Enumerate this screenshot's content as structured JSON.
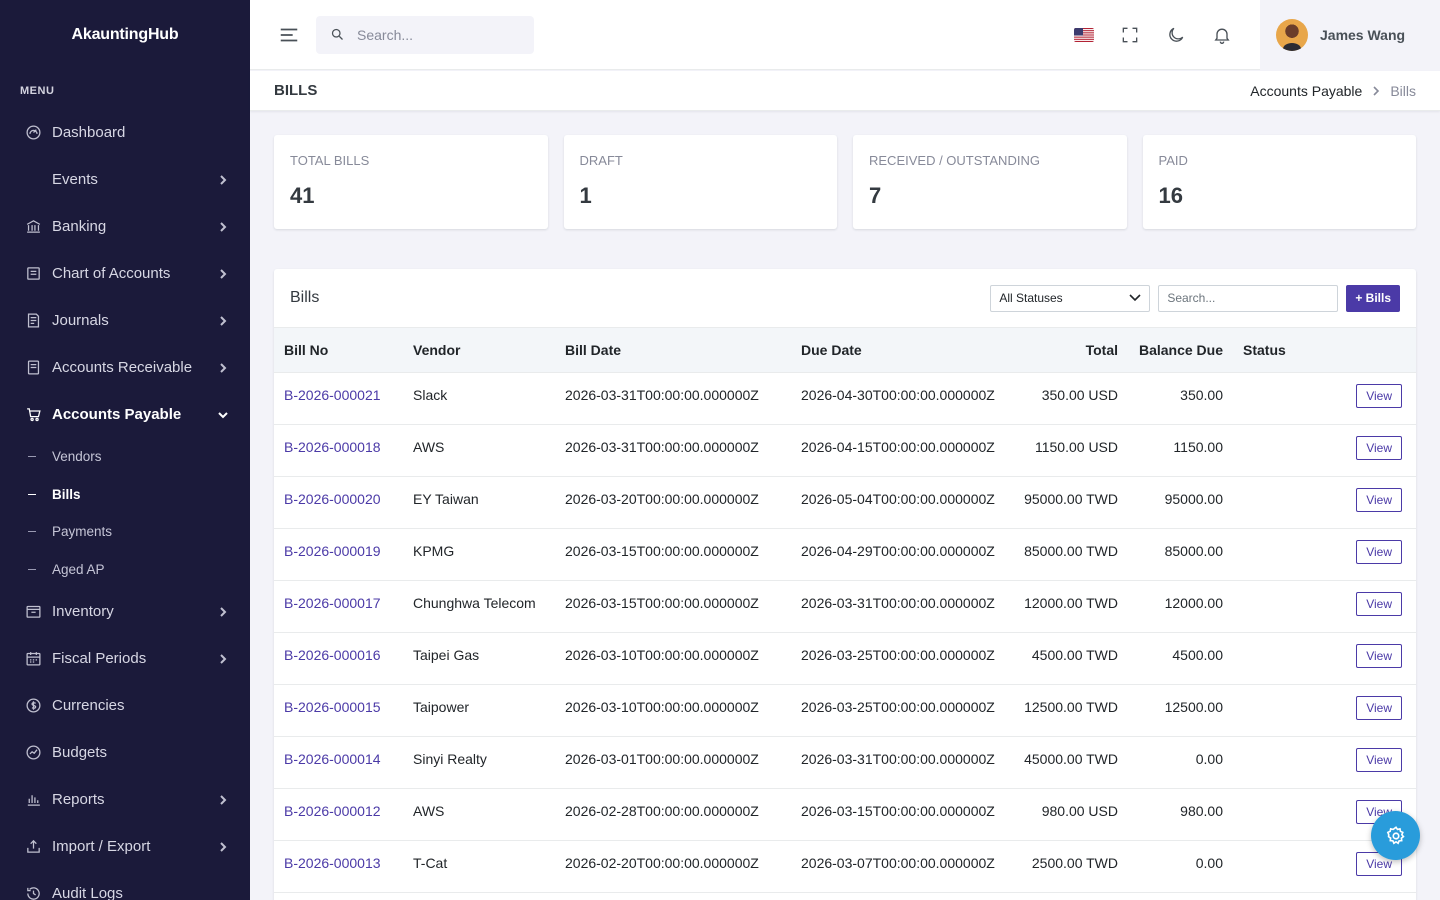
{
  "app": {
    "brand": "AkauntingHub"
  },
  "sidebar": {
    "menu_title": "MENU",
    "items": [
      {
        "label": "Dashboard",
        "icon": "dashboard-icon",
        "has_children": false
      },
      {
        "label": "Events",
        "icon": "",
        "has_children": true
      },
      {
        "label": "Banking",
        "icon": "bank-icon",
        "has_children": true
      },
      {
        "label": "Chart of Accounts",
        "icon": "ledger-icon",
        "has_children": true
      },
      {
        "label": "Journals",
        "icon": "journal-icon",
        "has_children": true
      },
      {
        "label": "Accounts Receivable",
        "icon": "receivable-icon",
        "has_children": true
      },
      {
        "label": "Accounts Payable",
        "icon": "cart-icon",
        "has_children": true,
        "expanded": true
      },
      {
        "label": "Inventory",
        "icon": "inventory-icon",
        "has_children": true
      },
      {
        "label": "Fiscal Periods",
        "icon": "calendar-icon",
        "has_children": true
      },
      {
        "label": "Currencies",
        "icon": "currency-icon",
        "has_children": false
      },
      {
        "label": "Budgets",
        "icon": "budget-icon",
        "has_children": false
      },
      {
        "label": "Reports",
        "icon": "bar-chart-icon",
        "has_children": true
      },
      {
        "label": "Import / Export",
        "icon": "upload-icon",
        "has_children": true
      },
      {
        "label": "Audit Logs",
        "icon": "history-icon",
        "has_children": false
      }
    ],
    "payable_sub": [
      "Vendors",
      "Bills",
      "Payments",
      "Aged AP"
    ],
    "active_sub": "Bills"
  },
  "topbar": {
    "search_placeholder": "Search...",
    "user_name": "James Wang"
  },
  "page": {
    "title": "BILLS",
    "breadcrumb_parent": "Accounts Payable",
    "breadcrumb_current": "Bills"
  },
  "stats": [
    {
      "label": "TOTAL BILLS",
      "value": "41"
    },
    {
      "label": "DRAFT",
      "value": "1"
    },
    {
      "label": "RECEIVED / OUTSTANDING",
      "value": "7"
    },
    {
      "label": "PAID",
      "value": "16"
    }
  ],
  "bills_panel": {
    "title": "Bills",
    "status_filter": "All Statuses",
    "search_placeholder": "Search...",
    "add_label": "+ Bills",
    "view_label": "View",
    "columns": [
      "Bill No",
      "Vendor",
      "Bill Date",
      "Due Date",
      "Total",
      "Balance Due",
      "Status"
    ],
    "rows": [
      [
        "B-2026-000021",
        "Slack",
        "2026-03-31T00:00:00.000000Z",
        "2026-04-30T00:00:00.000000Z",
        "350.00 USD",
        "350.00",
        ""
      ],
      [
        "B-2026-000018",
        "AWS",
        "2026-03-31T00:00:00.000000Z",
        "2026-04-15T00:00:00.000000Z",
        "1150.00 USD",
        "1150.00",
        ""
      ],
      [
        "B-2026-000020",
        "EY Taiwan",
        "2026-03-20T00:00:00.000000Z",
        "2026-05-04T00:00:00.000000Z",
        "95000.00 TWD",
        "95000.00",
        ""
      ],
      [
        "B-2026-000019",
        "KPMG",
        "2026-03-15T00:00:00.000000Z",
        "2026-04-29T00:00:00.000000Z",
        "85000.00 TWD",
        "85000.00",
        ""
      ],
      [
        "B-2026-000017",
        "Chunghwa Telecom",
        "2026-03-15T00:00:00.000000Z",
        "2026-03-31T00:00:00.000000Z",
        "12000.00 TWD",
        "12000.00",
        ""
      ],
      [
        "B-2026-000016",
        "Taipei Gas",
        "2026-03-10T00:00:00.000000Z",
        "2026-03-25T00:00:00.000000Z",
        "4500.00 TWD",
        "4500.00",
        ""
      ],
      [
        "B-2026-000015",
        "Taipower",
        "2026-03-10T00:00:00.000000Z",
        "2026-03-25T00:00:00.000000Z",
        "12500.00 TWD",
        "12500.00",
        ""
      ],
      [
        "B-2026-000014",
        "Sinyi Realty",
        "2026-03-01T00:00:00.000000Z",
        "2026-03-31T00:00:00.000000Z",
        "45000.00 TWD",
        "0.00",
        ""
      ],
      [
        "B-2026-000012",
        "AWS",
        "2026-02-28T00:00:00.000000Z",
        "2026-03-15T00:00:00.000000Z",
        "980.00 USD",
        "980.00",
        ""
      ],
      [
        "B-2026-000013",
        "T-Cat",
        "2026-02-20T00:00:00.000000Z",
        "2026-03-07T00:00:00.000000Z",
        "2500.00 TWD",
        "0.00",
        ""
      ]
    ]
  },
  "colors": {
    "sidebar_bg": "#1b1a3a",
    "accent": "#4b3aa7",
    "fab": "#299cdb",
    "page_bg": "#f3f3f9"
  }
}
